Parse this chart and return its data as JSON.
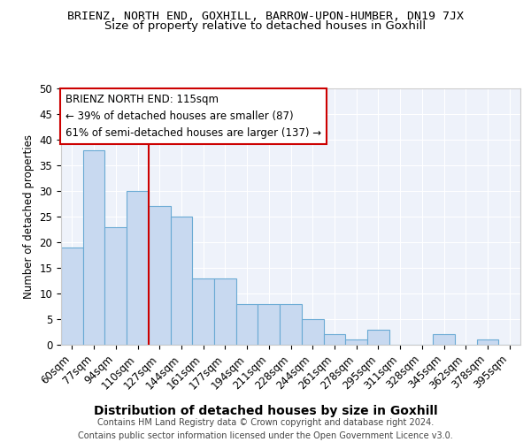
{
  "title": "BRIENZ, NORTH END, GOXHILL, BARROW-UPON-HUMBER, DN19 7JX",
  "subtitle": "Size of property relative to detached houses in Goxhill",
  "xlabel": "Distribution of detached houses by size in Goxhill",
  "ylabel": "Number of detached properties",
  "categories": [
    "60sqm",
    "77sqm",
    "94sqm",
    "110sqm",
    "127sqm",
    "144sqm",
    "161sqm",
    "177sqm",
    "194sqm",
    "211sqm",
    "228sqm",
    "244sqm",
    "261sqm",
    "278sqm",
    "295sqm",
    "311sqm",
    "328sqm",
    "345sqm",
    "362sqm",
    "378sqm",
    "395sqm"
  ],
  "values": [
    19,
    38,
    23,
    30,
    27,
    25,
    13,
    13,
    8,
    8,
    8,
    5,
    2,
    1,
    3,
    0,
    0,
    2,
    0,
    1,
    0
  ],
  "bar_color": "#c8d9f0",
  "bar_edge_color": "#6aaad4",
  "vline_x": 3.5,
  "vline_color": "#cc0000",
  "annotation_box_text": "BRIENZ NORTH END: 115sqm\n← 39% of detached houses are smaller (87)\n61% of semi-detached houses are larger (137) →",
  "ylim": [
    0,
    50
  ],
  "yticks": [
    0,
    5,
    10,
    15,
    20,
    25,
    30,
    35,
    40,
    45,
    50
  ],
  "background_color": "#eef2fa",
  "grid_color": "#ffffff",
  "footer_text": "Contains HM Land Registry data © Crown copyright and database right 2024.\nContains public sector information licensed under the Open Government Licence v3.0.",
  "title_fontsize": 9.5,
  "subtitle_fontsize": 9.5,
  "xlabel_fontsize": 10,
  "ylabel_fontsize": 8.5,
  "tick_fontsize": 8.5,
  "annotation_fontsize": 8.5,
  "footer_fontsize": 7
}
